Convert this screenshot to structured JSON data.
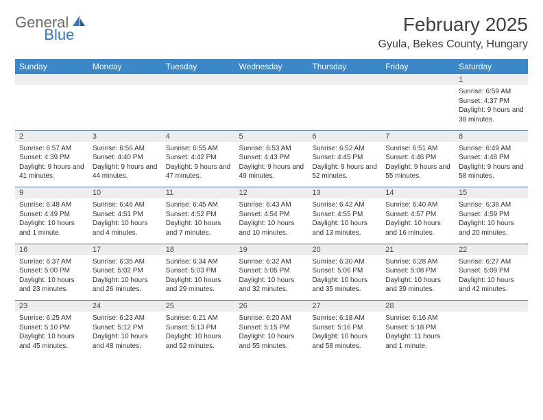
{
  "logo": {
    "general": "General",
    "blue": "Blue"
  },
  "title": "February 2025",
  "location": "Gyula, Bekes County, Hungary",
  "headers": [
    "Sunday",
    "Monday",
    "Tuesday",
    "Wednesday",
    "Thursday",
    "Friday",
    "Saturday"
  ],
  "colors": {
    "header_bg": "#3b87c8",
    "header_text": "#ffffff",
    "daynum_bg": "#ededed",
    "border": "#4a6e9c",
    "logo_gray": "#6b6b6b",
    "logo_blue": "#2f78bf",
    "text": "#333333"
  },
  "weeks": [
    [
      null,
      null,
      null,
      null,
      null,
      null,
      {
        "n": "1",
        "sr": "Sunrise: 6:59 AM",
        "ss": "Sunset: 4:37 PM",
        "dl": "Daylight: 9 hours and 38 minutes."
      }
    ],
    [
      {
        "n": "2",
        "sr": "Sunrise: 6:57 AM",
        "ss": "Sunset: 4:39 PM",
        "dl": "Daylight: 9 hours and 41 minutes."
      },
      {
        "n": "3",
        "sr": "Sunrise: 6:56 AM",
        "ss": "Sunset: 4:40 PM",
        "dl": "Daylight: 9 hours and 44 minutes."
      },
      {
        "n": "4",
        "sr": "Sunrise: 6:55 AM",
        "ss": "Sunset: 4:42 PM",
        "dl": "Daylight: 9 hours and 47 minutes."
      },
      {
        "n": "5",
        "sr": "Sunrise: 6:53 AM",
        "ss": "Sunset: 4:43 PM",
        "dl": "Daylight: 9 hours and 49 minutes."
      },
      {
        "n": "6",
        "sr": "Sunrise: 6:52 AM",
        "ss": "Sunset: 4:45 PM",
        "dl": "Daylight: 9 hours and 52 minutes."
      },
      {
        "n": "7",
        "sr": "Sunrise: 6:51 AM",
        "ss": "Sunset: 4:46 PM",
        "dl": "Daylight: 9 hours and 55 minutes."
      },
      {
        "n": "8",
        "sr": "Sunrise: 6:49 AM",
        "ss": "Sunset: 4:48 PM",
        "dl": "Daylight: 9 hours and 58 minutes."
      }
    ],
    [
      {
        "n": "9",
        "sr": "Sunrise: 6:48 AM",
        "ss": "Sunset: 4:49 PM",
        "dl": "Daylight: 10 hours and 1 minute."
      },
      {
        "n": "10",
        "sr": "Sunrise: 6:46 AM",
        "ss": "Sunset: 4:51 PM",
        "dl": "Daylight: 10 hours and 4 minutes."
      },
      {
        "n": "11",
        "sr": "Sunrise: 6:45 AM",
        "ss": "Sunset: 4:52 PM",
        "dl": "Daylight: 10 hours and 7 minutes."
      },
      {
        "n": "12",
        "sr": "Sunrise: 6:43 AM",
        "ss": "Sunset: 4:54 PM",
        "dl": "Daylight: 10 hours and 10 minutes."
      },
      {
        "n": "13",
        "sr": "Sunrise: 6:42 AM",
        "ss": "Sunset: 4:55 PM",
        "dl": "Daylight: 10 hours and 13 minutes."
      },
      {
        "n": "14",
        "sr": "Sunrise: 6:40 AM",
        "ss": "Sunset: 4:57 PM",
        "dl": "Daylight: 10 hours and 16 minutes."
      },
      {
        "n": "15",
        "sr": "Sunrise: 6:38 AM",
        "ss": "Sunset: 4:59 PM",
        "dl": "Daylight: 10 hours and 20 minutes."
      }
    ],
    [
      {
        "n": "16",
        "sr": "Sunrise: 6:37 AM",
        "ss": "Sunset: 5:00 PM",
        "dl": "Daylight: 10 hours and 23 minutes."
      },
      {
        "n": "17",
        "sr": "Sunrise: 6:35 AM",
        "ss": "Sunset: 5:02 PM",
        "dl": "Daylight: 10 hours and 26 minutes."
      },
      {
        "n": "18",
        "sr": "Sunrise: 6:34 AM",
        "ss": "Sunset: 5:03 PM",
        "dl": "Daylight: 10 hours and 29 minutes."
      },
      {
        "n": "19",
        "sr": "Sunrise: 6:32 AM",
        "ss": "Sunset: 5:05 PM",
        "dl": "Daylight: 10 hours and 32 minutes."
      },
      {
        "n": "20",
        "sr": "Sunrise: 6:30 AM",
        "ss": "Sunset: 5:06 PM",
        "dl": "Daylight: 10 hours and 35 minutes."
      },
      {
        "n": "21",
        "sr": "Sunrise: 6:28 AM",
        "ss": "Sunset: 5:08 PM",
        "dl": "Daylight: 10 hours and 39 minutes."
      },
      {
        "n": "22",
        "sr": "Sunrise: 6:27 AM",
        "ss": "Sunset: 5:09 PM",
        "dl": "Daylight: 10 hours and 42 minutes."
      }
    ],
    [
      {
        "n": "23",
        "sr": "Sunrise: 6:25 AM",
        "ss": "Sunset: 5:10 PM",
        "dl": "Daylight: 10 hours and 45 minutes."
      },
      {
        "n": "24",
        "sr": "Sunrise: 6:23 AM",
        "ss": "Sunset: 5:12 PM",
        "dl": "Daylight: 10 hours and 48 minutes."
      },
      {
        "n": "25",
        "sr": "Sunrise: 6:21 AM",
        "ss": "Sunset: 5:13 PM",
        "dl": "Daylight: 10 hours and 52 minutes."
      },
      {
        "n": "26",
        "sr": "Sunrise: 6:20 AM",
        "ss": "Sunset: 5:15 PM",
        "dl": "Daylight: 10 hours and 55 minutes."
      },
      {
        "n": "27",
        "sr": "Sunrise: 6:18 AM",
        "ss": "Sunset: 5:16 PM",
        "dl": "Daylight: 10 hours and 58 minutes."
      },
      {
        "n": "28",
        "sr": "Sunrise: 6:16 AM",
        "ss": "Sunset: 5:18 PM",
        "dl": "Daylight: 11 hours and 1 minute."
      },
      null
    ]
  ]
}
